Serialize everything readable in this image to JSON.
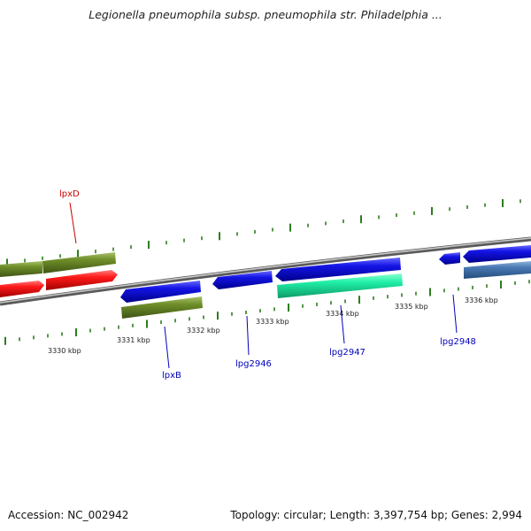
{
  "title": "Legionella pneumophila subsp. pneumophila str. Philadelphia ...",
  "footer": {
    "accession": "Accession: NC_002942",
    "summary": "Topology: circular; Length: 3,397,754 bp; Genes: 2,994"
  },
  "colors": {
    "backbone": "#8a8a8a",
    "tick": "#2e7d1e",
    "red_gene": "#ee1111",
    "olive_gene": "#6b8e23",
    "blue_gene": "#1515e0",
    "teal_gene": "#1ee8a0",
    "steel_gene": "#4a78b0",
    "label_red": "#cc0000",
    "label_blue": "#0000bb"
  },
  "scale_labels": [
    {
      "text": "3330 kbp"
    },
    {
      "text": "3331 kbp"
    },
    {
      "text": "3332 kbp"
    },
    {
      "text": "3333 kbp"
    },
    {
      "text": "3334 kbp"
    },
    {
      "text": "3335 kbp"
    },
    {
      "text": "3336 kbp"
    }
  ],
  "gene_labels": [
    {
      "name": "lpxD",
      "color": "red"
    },
    {
      "name": "lpxB",
      "color": "blue"
    },
    {
      "name": "lpg2946",
      "color": "blue"
    },
    {
      "name": "lpg2947",
      "color": "blue"
    },
    {
      "name": "lpg2948",
      "color": "blue"
    }
  ]
}
